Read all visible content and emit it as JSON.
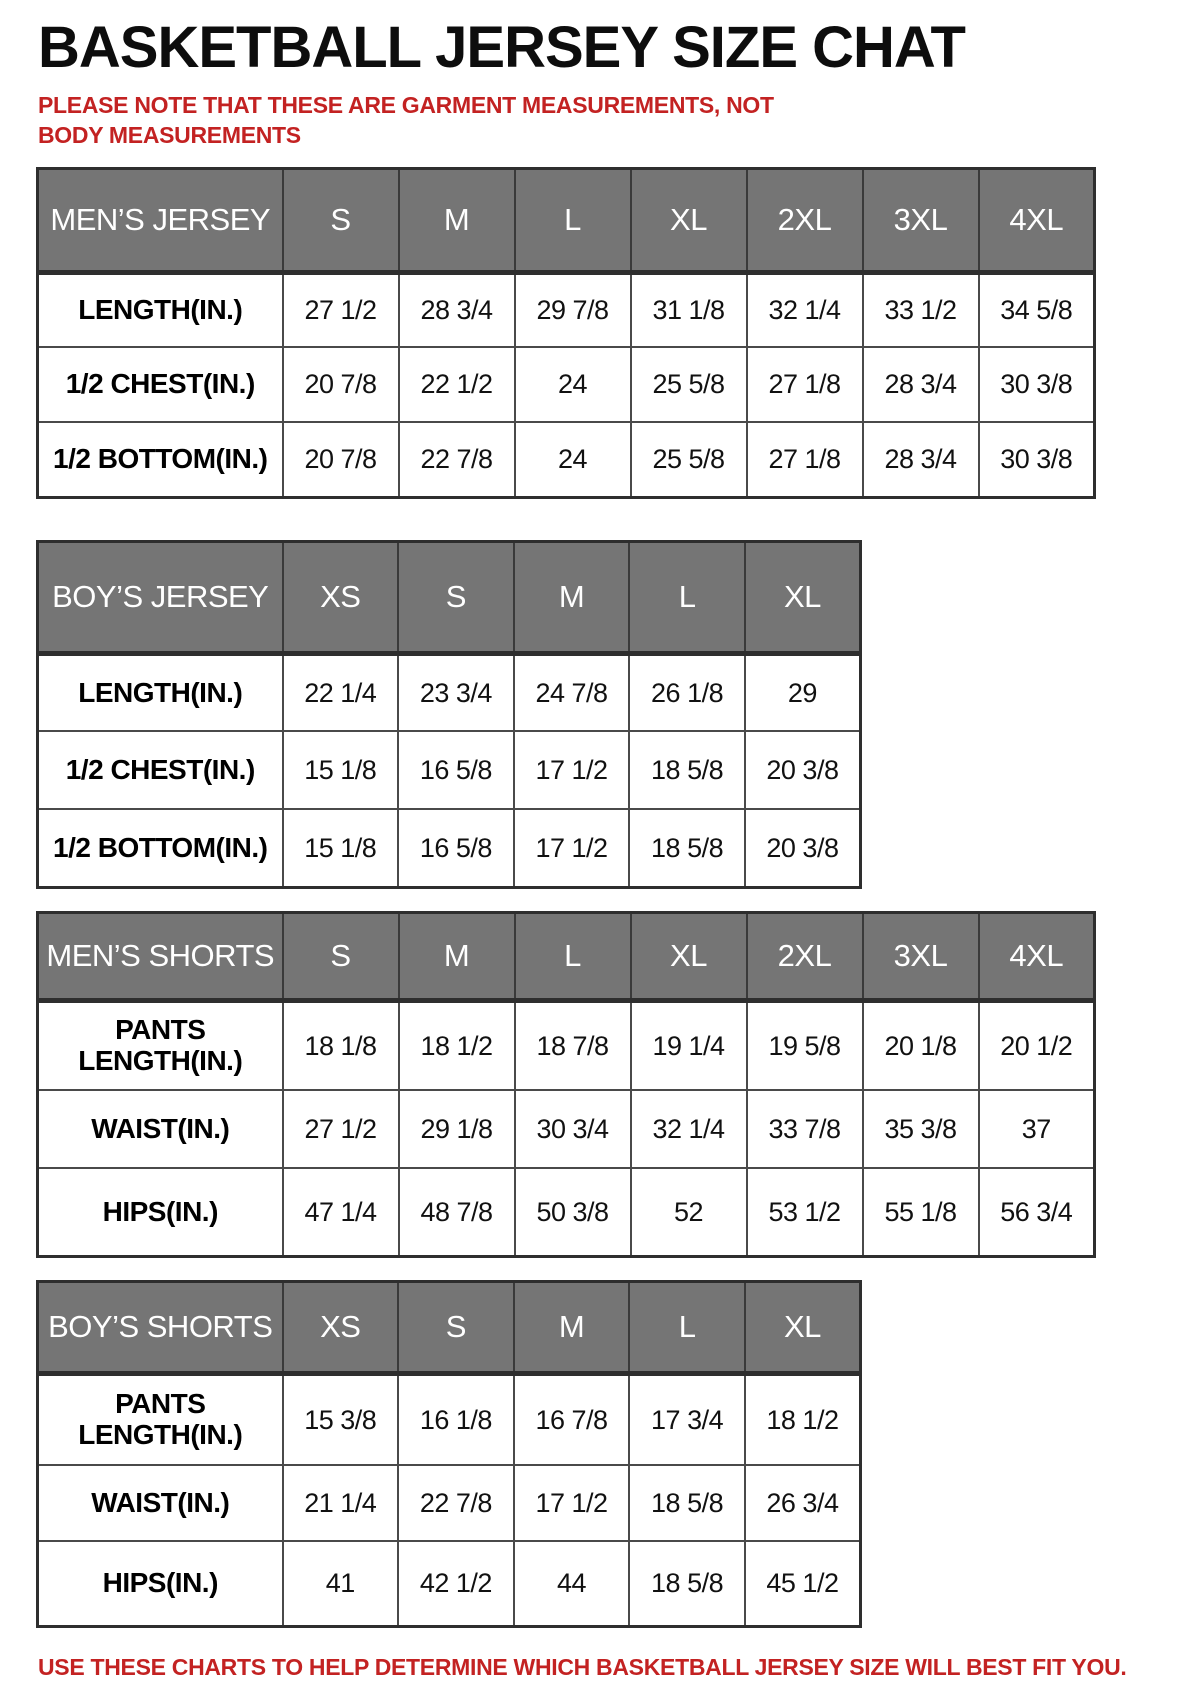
{
  "page": {
    "title": "BASKETBALL JERSEY SIZE CHAT",
    "note": "PLEASE NOTE THAT THESE ARE GARMENT MEASUREMENTS, NOT BODY MEASUREMENTS",
    "footer": "USE THESE CHARTS TO HELP DETERMINE WHICH BASKETBALL JERSEY SIZE WILL BEST FIT YOU.",
    "colors": {
      "accent_red": "#c32222",
      "header_gray": "#757575",
      "header_text": "#ffffff",
      "border_dark": "#2e2e2e"
    }
  },
  "tables": [
    {
      "name": "mens-jersey",
      "header": [
        "MEN’S JERSEY",
        "S",
        "M",
        "L",
        "XL",
        "2XL",
        "3XL",
        "4XL"
      ],
      "rows": [
        [
          "LENGTH(IN.)",
          "27 1/2",
          "28 3/4",
          "29 7/8",
          "31 1/8",
          "32 1/4",
          "33 1/2",
          "34 5/8"
        ],
        [
          "1/2 CHEST(IN.)",
          "20 7/8",
          "22 1/2",
          "24",
          "25 5/8",
          "27 1/8",
          "28 3/4",
          "30 3/8"
        ],
        [
          "1/2 BOTTOM(IN.)",
          "20 7/8",
          "22 7/8",
          "24",
          "25 5/8",
          "27 1/8",
          "28 3/4",
          "30 3/8"
        ]
      ]
    },
    {
      "name": "boys-jersey",
      "header": [
        "BOY’S JERSEY",
        "XS",
        "S",
        "M",
        "L",
        "XL"
      ],
      "rows": [
        [
          "LENGTH(IN.)",
          "22 1/4",
          "23 3/4",
          "24 7/8",
          "26 1/8",
          "29"
        ],
        [
          "1/2 CHEST(IN.)",
          "15 1/8",
          "16 5/8",
          "17 1/2",
          "18 5/8",
          "20 3/8"
        ],
        [
          "1/2 BOTTOM(IN.)",
          "15 1/8",
          "16 5/8",
          "17 1/2",
          "18 5/8",
          "20 3/8"
        ]
      ]
    },
    {
      "name": "mens-shorts",
      "header": [
        "MEN’S SHORTS",
        "S",
        "M",
        "L",
        "XL",
        "2XL",
        "3XL",
        "4XL"
      ],
      "rows": [
        [
          "PANTS LENGTH(IN.)",
          "18 1/8",
          "18 1/2",
          "18 7/8",
          "19 1/4",
          "19 5/8",
          "20 1/8",
          "20 1/2"
        ],
        [
          "WAIST(IN.)",
          "27 1/2",
          "29 1/8",
          "30 3/4",
          "32 1/4",
          "33 7/8",
          "35 3/8",
          "37"
        ],
        [
          "HIPS(IN.)",
          "47 1/4",
          "48 7/8",
          "50 3/8",
          "52",
          "53 1/2",
          "55 1/8",
          "56 3/4"
        ]
      ]
    },
    {
      "name": "boys-shorts",
      "header": [
        "BOY’S SHORTS",
        "XS",
        "S",
        "M",
        "L",
        "XL"
      ],
      "rows": [
        [
          "PANTS LENGTH(IN.)",
          "15 3/8",
          "16 1/8",
          "16 7/8",
          "17 3/4",
          "18 1/2"
        ],
        [
          "WAIST(IN.)",
          "21 1/4",
          "22 7/8",
          "17 1/2",
          "18 5/8",
          "26 3/4"
        ],
        [
          "HIPS(IN.)",
          "41",
          "42 1/2",
          "44",
          "18 5/8",
          "45 1/2"
        ]
      ]
    }
  ]
}
